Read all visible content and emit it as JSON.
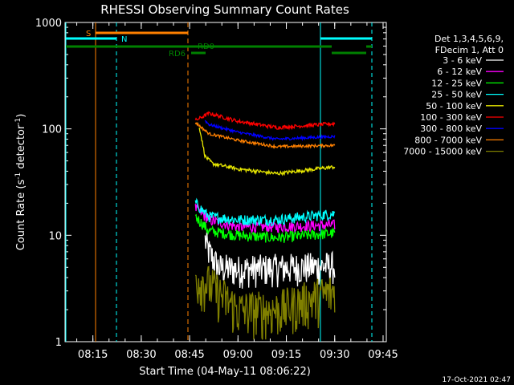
{
  "chart_data": {
    "type": "line",
    "title": "RHESSI Observing Summary Count Rates",
    "xlabel": "Start Time (04-May-11 08:06:22)",
    "ylabel": "Count Rate (s⁻¹ detector⁻¹)",
    "ylabel_main": "Count Rate (s",
    "ylabel_sup1": "-1",
    "ylabel_mid": " detector",
    "ylabel_sup2": "-1",
    "ylabel_end": ")",
    "yscale": "log",
    "ylim": [
      1,
      1000
    ],
    "xlim": [
      "08:06:22",
      "09:46:00"
    ],
    "x_ticks": [
      "08:15",
      "08:30",
      "08:45",
      "09:00",
      "09:15",
      "09:30",
      "09:45"
    ],
    "y_ticks": [
      "1",
      "10",
      "100",
      "1000"
    ],
    "timestamp": "17-Oct-2021 02:47",
    "legend": {
      "header1": "Det 1,3,4,5,6,9,",
      "header2": "FDecim 1, Att 0",
      "placement": "right"
    },
    "series": [
      {
        "name": "3 - 6 keV",
        "color": "#ffffff",
        "values": [
          [
            8.83,
            9
          ],
          [
            8.85,
            7
          ],
          [
            8.9,
            5
          ],
          [
            9.0,
            4.8
          ],
          [
            9.25,
            5
          ],
          [
            9.5,
            5.2
          ]
        ]
      },
      {
        "name": "6 - 12 keV",
        "color": "#ff00ff",
        "values": [
          [
            8.78,
            18
          ],
          [
            8.85,
            14
          ],
          [
            9.0,
            12
          ],
          [
            9.2,
            12
          ],
          [
            9.5,
            12.5
          ]
        ]
      },
      {
        "name": "12 - 25 keV",
        "color": "#00ff00",
        "values": [
          [
            8.78,
            15
          ],
          [
            8.85,
            11
          ],
          [
            9.0,
            10
          ],
          [
            9.2,
            9.5
          ],
          [
            9.5,
            10.5
          ]
        ]
      },
      {
        "name": "25 - 50 keV",
        "color": "#00ffff",
        "values": [
          [
            8.78,
            20
          ],
          [
            8.85,
            15
          ],
          [
            9.0,
            14
          ],
          [
            9.2,
            14
          ],
          [
            9.5,
            16
          ]
        ]
      },
      {
        "name": "50 - 100 keV",
        "color": "#e6e600",
        "values": [
          [
            8.8,
            105
          ],
          [
            8.83,
            55
          ],
          [
            8.87,
            47
          ],
          [
            9.0,
            42
          ],
          [
            9.2,
            38
          ],
          [
            9.5,
            44
          ]
        ]
      },
      {
        "name": "100 - 300 keV",
        "color": "#ff0000",
        "values": [
          [
            8.78,
            120
          ],
          [
            8.85,
            140
          ],
          [
            9.0,
            118
          ],
          [
            9.2,
            103
          ],
          [
            9.5,
            112
          ]
        ]
      },
      {
        "name": "300 - 800 keV",
        "color": "#0000ff",
        "values": [
          [
            8.83,
            120
          ],
          [
            8.85,
            110
          ],
          [
            9.0,
            93
          ],
          [
            9.2,
            80
          ],
          [
            9.5,
            85
          ]
        ]
      },
      {
        "name": "800 - 7000 keV",
        "color": "#ff8000",
        "values": [
          [
            8.78,
            115
          ],
          [
            8.85,
            90
          ],
          [
            9.0,
            78
          ],
          [
            9.2,
            68
          ],
          [
            9.5,
            70
          ]
        ]
      },
      {
        "name": "7000 - 15000 keV",
        "color": "#808000",
        "values": [
          [
            8.78,
            4
          ],
          [
            8.85,
            3.5
          ],
          [
            9.0,
            2
          ],
          [
            9.2,
            2
          ],
          [
            9.5,
            3
          ]
        ]
      }
    ],
    "flag_bars": [
      {
        "label": "S",
        "color": "#ff8000"
      },
      {
        "label": "N",
        "color": "#00ffff"
      },
      {
        "label": "RD0",
        "color": "#008000"
      },
      {
        "label": "RD6",
        "color": "#008000"
      }
    ]
  }
}
